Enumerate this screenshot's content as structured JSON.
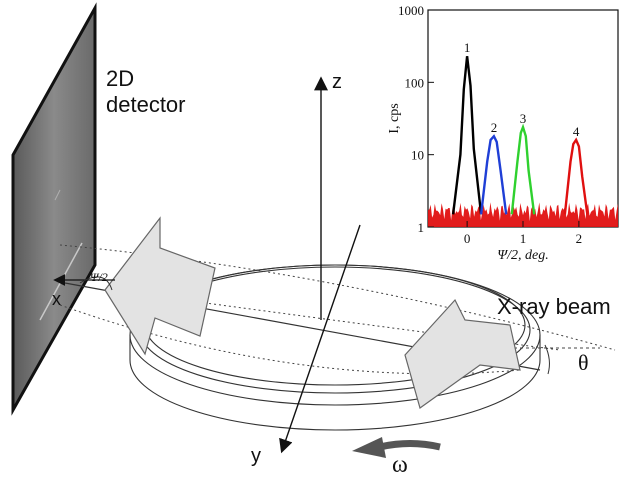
{
  "diagram": {
    "detector_label_line1": "2D",
    "detector_label_line2": "detector",
    "axis_z": "z",
    "axis_x": "x",
    "axis_y": "y",
    "psi_label": "Ψ/2",
    "beam_label": "X-ray beam",
    "theta_label": "θ",
    "omega_label": "ω",
    "colors": {
      "arrow_fill": "#e3e3e3",
      "detector_dark": "#3a3a3a",
      "detector_light": "#9a9a9a",
      "omega_arrow": "#555555"
    }
  },
  "chart_data": {
    "type": "line",
    "ylabel": "I, cps",
    "xlabel": "Ψ/2, deg.",
    "y_scale": "log",
    "ylim": [
      1,
      1000
    ],
    "xlim": [
      -0.7,
      2.7
    ],
    "x_ticks": [
      0,
      1,
      2
    ],
    "y_tick_labels": [
      "1",
      "10",
      "100",
      "1000"
    ],
    "y_ticks": [
      1,
      10,
      100,
      1000
    ],
    "series": [
      {
        "name": "1",
        "color": "#000000",
        "x": [
          -0.25,
          -0.12,
          -0.06,
          0.0,
          0.06,
          0.12,
          0.25
        ],
        "y": [
          1.5,
          10,
          80,
          230,
          90,
          12,
          1.5
        ]
      },
      {
        "name": "2",
        "color": "#1f3fd6",
        "x": [
          0.25,
          0.36,
          0.42,
          0.48,
          0.53,
          0.6,
          0.7
        ],
        "y": [
          1.5,
          8,
          16,
          18,
          15,
          6,
          1.5
        ]
      },
      {
        "name": "3",
        "color": "#2fd12f",
        "x": [
          0.8,
          0.9,
          0.96,
          1.0,
          1.05,
          1.1,
          1.2
        ],
        "y": [
          1.5,
          8,
          20,
          24,
          18,
          6,
          1.5
        ]
      },
      {
        "name": "4",
        "color": "#e01010",
        "x": [
          1.75,
          1.85,
          1.9,
          1.95,
          2.0,
          2.06,
          2.15
        ],
        "y": [
          1.5,
          8,
          14,
          16,
          13,
          5,
          1.5
        ]
      }
    ],
    "background_noise": {
      "color": "#e01010",
      "level": [
        1.2,
        2.2
      ]
    }
  }
}
